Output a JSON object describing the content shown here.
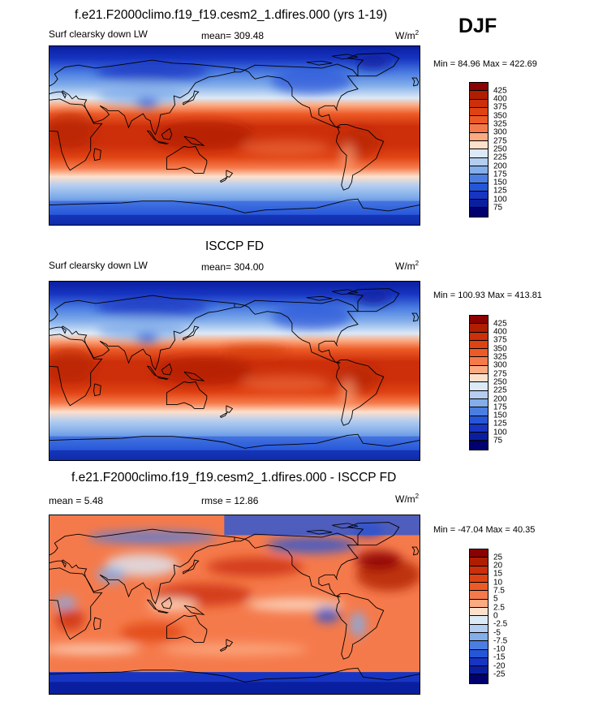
{
  "season": "DJF",
  "panels": [
    {
      "title": "f.e21.F2000climo.f19_f19.cesm2_1.dfires.000 (yrs 1-19)",
      "variable": "Surf clearsky down LW",
      "stat": "mean= 309.48",
      "units": "W/m",
      "units_exp": "2",
      "minmax": "Min =  84.96 Max = 422.69",
      "levels": [
        "425",
        "400",
        "375",
        "350",
        "325",
        "300",
        "275",
        "250",
        "225",
        "200",
        "175",
        "150",
        "125",
        "100",
        "75"
      ],
      "colors": [
        "#8b0000",
        "#b01e00",
        "#cc2f0a",
        "#e04313",
        "#ed5a26",
        "#f57a4b",
        "#fcaa82",
        "#fde0cc",
        "#dce9f6",
        "#b4cdf0",
        "#83aeea",
        "#4c7ee2",
        "#2656d8",
        "#1735c2",
        "#0a1fa0",
        "#00006e"
      ]
    },
    {
      "title": "ISCCP FD",
      "variable": "Surf clearsky down LW",
      "stat": "mean= 304.00",
      "units": "W/m",
      "units_exp": "2",
      "minmax": "Min = 100.93 Max = 413.81",
      "levels": [
        "425",
        "400",
        "375",
        "350",
        "325",
        "300",
        "275",
        "250",
        "225",
        "200",
        "175",
        "150",
        "125",
        "100",
        "75"
      ],
      "colors": [
        "#8b0000",
        "#b01e00",
        "#cc2f0a",
        "#e04313",
        "#ed5a26",
        "#f57a4b",
        "#fcaa82",
        "#fde0cc",
        "#dce9f6",
        "#b4cdf0",
        "#83aeea",
        "#4c7ee2",
        "#2656d8",
        "#1735c2",
        "#0a1fa0",
        "#00006e"
      ]
    },
    {
      "title": "f.e21.F2000climo.f19_f19.cesm2_1.dfires.000 - ISCCP FD",
      "variable": "mean =   5.48",
      "stat": "rmse =  12.86",
      "units": "W/m",
      "units_exp": "2",
      "minmax": "Min = -47.04 Max =  40.35",
      "levels": [
        "25",
        "20",
        "15",
        "10",
        "7.5",
        "5",
        "2.5",
        "0",
        "-2.5",
        "-5",
        "-7.5",
        "-10",
        "-15",
        "-20",
        "-25"
      ],
      "colors": [
        "#8b0000",
        "#b01e00",
        "#cc2f0a",
        "#e04313",
        "#ed5a26",
        "#f57a4b",
        "#fcaa82",
        "#fde0cc",
        "#dce9f6",
        "#b4cdf0",
        "#83aeea",
        "#4c7ee2",
        "#2656d8",
        "#1735c2",
        "#0a1fa0",
        "#00006e"
      ]
    }
  ]
}
